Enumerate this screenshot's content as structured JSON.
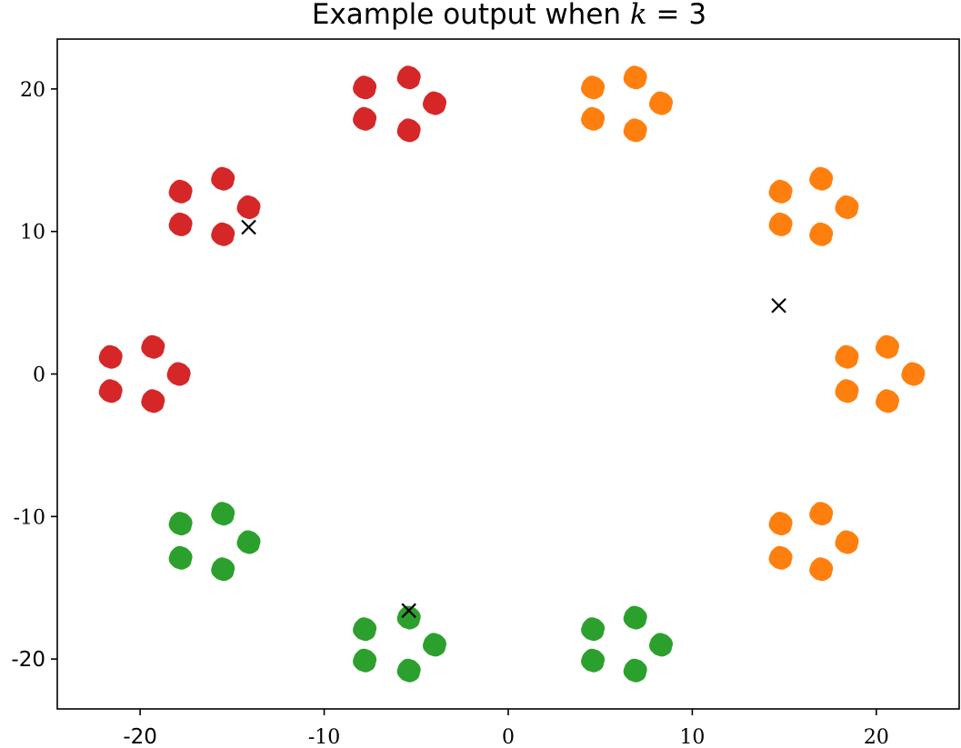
{
  "chart_data": {
    "type": "scatter",
    "title": "Example output when ",
    "title_math_var": "k",
    "title_math_rest": " = 3",
    "xlabel": "",
    "ylabel": "",
    "xlim": [
      -24.5,
      24.5
    ],
    "ylim": [
      -23.5,
      23.5
    ],
    "grid": false,
    "legend": "none",
    "xticks": [
      {
        "value": -20,
        "label": "-20",
        "style": "sans"
      },
      {
        "value": -10,
        "label": "-10",
        "style": "serif"
      },
      {
        "value": 0,
        "label": "0",
        "style": "serif"
      },
      {
        "value": 10,
        "label": "10",
        "style": "serif"
      },
      {
        "value": 20,
        "label": "20",
        "style": "serif"
      }
    ],
    "yticks": [
      {
        "value": 20,
        "label": "20",
        "style": "serif"
      },
      {
        "value": 10,
        "label": "10",
        "style": "serif"
      },
      {
        "value": 0,
        "label": "0",
        "style": "serif"
      },
      {
        "value": -10,
        "label": "-10",
        "style": "serif"
      },
      {
        "value": -20,
        "label": "-20",
        "style": "sans"
      }
    ],
    "series": [
      {
        "color": "#d62728",
        "clusters": [
          [
            -7.8,
            20.1
          ],
          [
            -5.4,
            20.8
          ],
          [
            -4.0,
            19.0
          ],
          [
            -5.4,
            17.1
          ],
          [
            -7.8,
            17.9
          ],
          [
            -17.8,
            12.8
          ],
          [
            -15.5,
            13.7
          ],
          [
            -14.1,
            11.7
          ],
          [
            -15.5,
            9.8
          ],
          [
            -17.8,
            10.5
          ],
          [
            -21.6,
            1.2
          ],
          [
            -19.3,
            1.9
          ],
          [
            -17.9,
            0.0
          ],
          [
            -19.3,
            -1.9
          ],
          [
            -21.6,
            -1.2
          ]
        ]
      },
      {
        "color": "#ff7f0e",
        "clusters": [
          [
            4.6,
            20.1
          ],
          [
            6.9,
            20.8
          ],
          [
            8.3,
            19.0
          ],
          [
            6.9,
            17.1
          ],
          [
            4.6,
            17.9
          ],
          [
            14.8,
            12.8
          ],
          [
            17.0,
            13.7
          ],
          [
            18.4,
            11.7
          ],
          [
            17.0,
            9.8
          ],
          [
            14.8,
            10.5
          ],
          [
            18.4,
            1.2
          ],
          [
            20.6,
            1.9
          ],
          [
            22.0,
            0.0
          ],
          [
            20.6,
            -1.9
          ],
          [
            18.4,
            -1.2
          ],
          [
            14.8,
            -10.5
          ],
          [
            17.0,
            -9.8
          ],
          [
            18.4,
            -11.8
          ],
          [
            17.0,
            -13.7
          ],
          [
            14.8,
            -12.9
          ]
        ]
      },
      {
        "color": "#2ca02c",
        "clusters": [
          [
            -17.8,
            -10.5
          ],
          [
            -15.5,
            -9.8
          ],
          [
            -14.1,
            -11.8
          ],
          [
            -15.5,
            -13.7
          ],
          [
            -17.8,
            -12.9
          ],
          [
            -7.8,
            -17.9
          ],
          [
            -5.4,
            -17.1
          ],
          [
            -4.0,
            -19.0
          ],
          [
            -5.4,
            -20.8
          ],
          [
            -7.8,
            -20.1
          ],
          [
            4.6,
            -17.9
          ],
          [
            6.9,
            -17.1
          ],
          [
            8.3,
            -19.0
          ],
          [
            6.9,
            -20.8
          ],
          [
            4.6,
            -20.1
          ]
        ]
      }
    ],
    "centroids": [
      [
        -14.1,
        10.3
      ],
      [
        14.7,
        4.8
      ],
      [
        -5.4,
        -16.6
      ]
    ],
    "centroid_marker": "x",
    "centroid_color": "#000000"
  }
}
